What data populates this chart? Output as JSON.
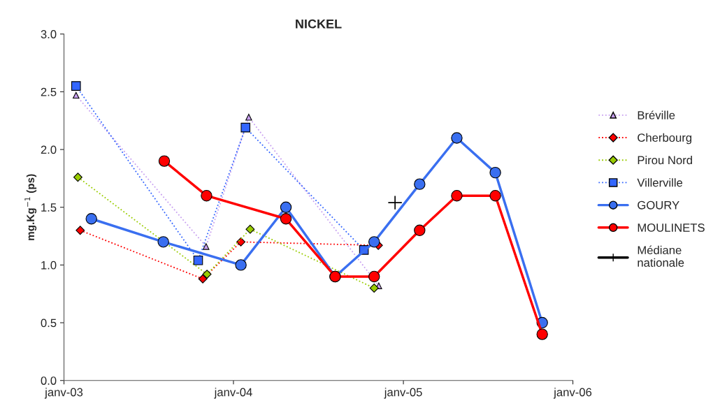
{
  "chart_data": {
    "type": "line",
    "title": "NICKEL",
    "ylabel": "mg.Kg$^{−1}$ (ps)",
    "xlim": [
      "2003-01-01",
      "2006-01-01"
    ],
    "xticks": [
      {
        "value": "2003-01-01",
        "label": "janv-03"
      },
      {
        "value": "2004-01-01",
        "label": "janv-04"
      },
      {
        "value": "2005-01-01",
        "label": "janv-05"
      },
      {
        "value": "2006-01-01",
        "label": "janv-06"
      }
    ],
    "ylim": [
      0,
      3
    ],
    "yticks": [
      {
        "value": 0,
        "label": "0.0"
      },
      {
        "value": 0.5,
        "label": "0.5"
      },
      {
        "value": 1,
        "label": "1.0"
      },
      {
        "value": 1.5,
        "label": "1.5"
      },
      {
        "value": 2,
        "label": "2.0"
      },
      {
        "value": 2.5,
        "label": "2.5"
      },
      {
        "value": 3,
        "label": "3.0"
      }
    ],
    "grid": false,
    "legend": "right",
    "series": [
      {
        "name": "Bréville",
        "color": "#c8a0f0",
        "marker": "triangle",
        "line_style": "dotted",
        "x": [
          "2003-01-27",
          "2003-11-03",
          "2004-02-03",
          "2004-11-09"
        ],
        "values": [
          2.47,
          1.16,
          2.28,
          0.82
        ]
      },
      {
        "name": "Cherbourg",
        "color": "#ff0000",
        "marker": "diamond",
        "line_style": "dotted",
        "x": [
          "2003-02-05",
          "2003-10-27",
          "2004-01-17",
          "2004-11-08"
        ],
        "values": [
          1.3,
          0.88,
          1.2,
          1.17
        ]
      },
      {
        "name": "Pirou Nord",
        "color": "#99cc00",
        "marker": "diamond",
        "line_style": "dotted",
        "x": [
          "2003-01-31",
          "2003-11-05",
          "2004-02-06",
          "2004-10-30"
        ],
        "values": [
          1.76,
          0.92,
          1.31,
          0.8
        ]
      },
      {
        "name": "Villerville",
        "color": "#3366ff",
        "marker": "square",
        "line_style": "dotted",
        "x": [
          "2003-01-27",
          "2003-10-17",
          "2004-01-27",
          "2004-10-08"
        ],
        "values": [
          2.55,
          1.04,
          2.19,
          1.13
        ]
      },
      {
        "name": "GOURY",
        "color": "#3a6ff0",
        "marker": "circle",
        "line_style": "solid",
        "x": [
          "2003-03-01",
          "2003-08-03",
          "2004-01-17",
          "2004-04-23",
          "2004-08-07",
          "2004-10-30",
          "2005-02-05",
          "2005-04-26",
          "2005-07-18",
          "2005-10-27"
        ],
        "values": [
          1.4,
          1.2,
          1.0,
          1.5,
          0.9,
          1.2,
          1.7,
          2.1,
          1.8,
          0.5
        ]
      },
      {
        "name": "MOULINETS",
        "color": "#ff0000",
        "marker": "circle",
        "line_style": "solid",
        "x": [
          "2003-08-05",
          "2003-11-04",
          "2004-04-23",
          "2004-08-07",
          "2004-10-30",
          "2005-02-05",
          "2005-04-26",
          "2005-07-18",
          "2005-10-27"
        ],
        "values": [
          1.9,
          1.6,
          1.4,
          0.9,
          0.9,
          1.3,
          1.6,
          1.6,
          0.4
        ]
      },
      {
        "name": "Médiane\nnationale",
        "color": "#000000",
        "marker": "cross",
        "line_style": "solid",
        "x": [
          "2004-12-14"
        ],
        "values": [
          1.54
        ]
      }
    ]
  }
}
